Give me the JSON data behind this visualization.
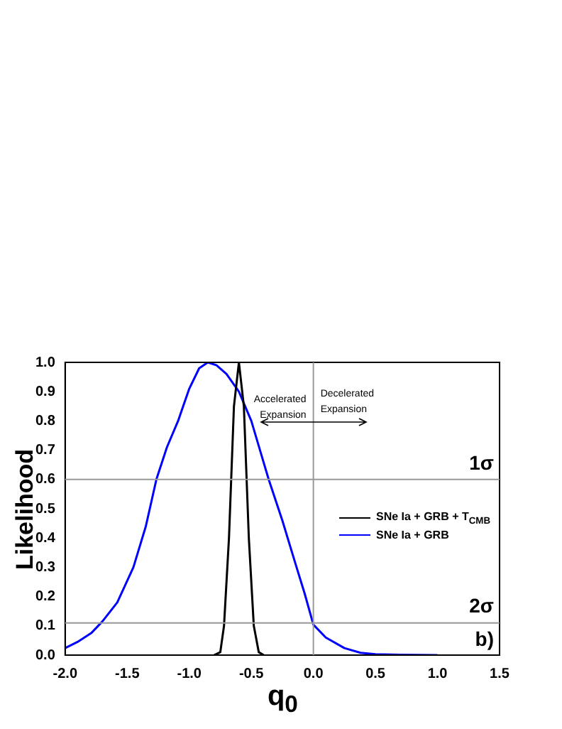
{
  "chart_data": {
    "type": "line",
    "xlabel": "q$_{0}$",
    "ylabel": "Likelihood",
    "xlim": [
      -2.0,
      1.5
    ],
    "xticks": [
      {
        "value": -2,
        "label": "-2.0"
      },
      {
        "value": -1.5,
        "label": "-1.5"
      },
      {
        "value": -1,
        "label": "-1.0"
      },
      {
        "value": -0.5,
        "label": "-0.5"
      },
      {
        "value": 0,
        "label": "0.0"
      },
      {
        "value": 0.5,
        "label": "0.5"
      },
      {
        "value": 1,
        "label": "1.0"
      },
      {
        "value": 1.5,
        "label": "1.5"
      }
    ],
    "ylim": [
      0,
      1.0
    ],
    "yticks": [
      {
        "value": 0,
        "label": "0.0"
      },
      0.1,
      0.2,
      0.3,
      0.4,
      0.5,
      0.6,
      0.7,
      0.8,
      0.9,
      {
        "value": 1,
        "label": "1.0"
      }
    ],
    "series": [
      {
        "name": "SNe Ia + GRB + T$_{CMB}$",
        "color": "#000000",
        "x": [
          -0.8,
          -0.75,
          -0.72,
          -0.68,
          -0.64,
          -0.6,
          -0.56,
          -0.52,
          -0.48,
          -0.44,
          -0.4
        ],
        "values": [
          0,
          0.01,
          0.1,
          0.4,
          0.85,
          1.0,
          0.85,
          0.4,
          0.1,
          0.01,
          0
        ]
      },
      {
        "name": "SNe Ia + GRB",
        "color": "#0000ff",
        "x": [
          -2.0,
          -1.9,
          -1.79,
          -1.7,
          -1.58,
          -1.45,
          -1.35,
          -1.265,
          -1.18,
          -1.09,
          -1.0,
          -0.92,
          -0.85,
          -0.78,
          -0.7,
          -0.6,
          -0.5,
          -0.43,
          -0.36,
          -0.25,
          -0.15,
          -0.07,
          0.0,
          0.1,
          0.25,
          0.38,
          0.5,
          0.7,
          1.0
        ],
        "values": [
          0.024,
          0.045,
          0.075,
          0.115,
          0.18,
          0.3,
          0.44,
          0.6,
          0.71,
          0.8,
          0.91,
          0.98,
          1.0,
          0.99,
          0.96,
          0.9,
          0.8,
          0.7,
          0.6,
          0.46,
          0.32,
          0.21,
          0.104,
          0.06,
          0.024,
          0.008,
          0.003,
          0.001,
          0
        ]
      }
    ],
    "ref_lines": [
      {
        "axis": "y",
        "value": 0.6,
        "label": "1σ",
        "color": "#999999"
      },
      {
        "axis": "y",
        "value": 0.11,
        "label": "2σ",
        "color": "#999999"
      },
      {
        "axis": "x",
        "value": 0,
        "color": "#999999"
      }
    ],
    "annotations": [
      "Accelerated Expansion",
      "Decelerated Expansion",
      "b)"
    ],
    "legend": "center right",
    "grid": false,
    "marker": "none",
    "line_style": "solid"
  }
}
